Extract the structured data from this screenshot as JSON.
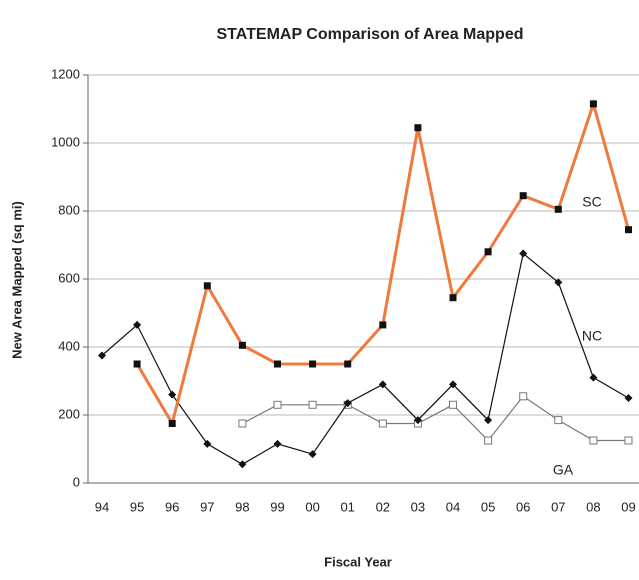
{
  "chart_data": {
    "type": "line",
    "title": "STATEMAP Comparison of Area Mapped",
    "x_label": "Fiscal Year",
    "y_label": "New Area Mapped (sq mi)",
    "categories": [
      "94",
      "95",
      "96",
      "97",
      "98",
      "99",
      "00",
      "01",
      "02",
      "03",
      "04",
      "05",
      "06",
      "07",
      "08",
      "09"
    ],
    "ylim": [
      0,
      1200
    ],
    "yticks": [
      0,
      200,
      400,
      600,
      800,
      1000,
      {
        "value": 1200,
        "label": "1200"
      }
    ],
    "grid": true,
    "series": [
      {
        "name": "SC",
        "color": "#f07a3c",
        "marker": "filled-square",
        "values": [
          null,
          350,
          175,
          580,
          405,
          350,
          350,
          350,
          465,
          1045,
          545,
          680,
          845,
          805,
          1115,
          745
        ]
      },
      {
        "name": "NC",
        "color": "#111111",
        "marker": "diamond",
        "values": [
          375,
          465,
          260,
          115,
          55,
          115,
          85,
          235,
          290,
          185,
          290,
          185,
          675,
          590,
          310,
          250
        ]
      },
      {
        "name": "GA",
        "color": "#777777",
        "marker": "open-square",
        "values": [
          null,
          null,
          null,
          null,
          175,
          230,
          230,
          230,
          175,
          175,
          230,
          125,
          255,
          185,
          125,
          125
        ]
      }
    ]
  }
}
